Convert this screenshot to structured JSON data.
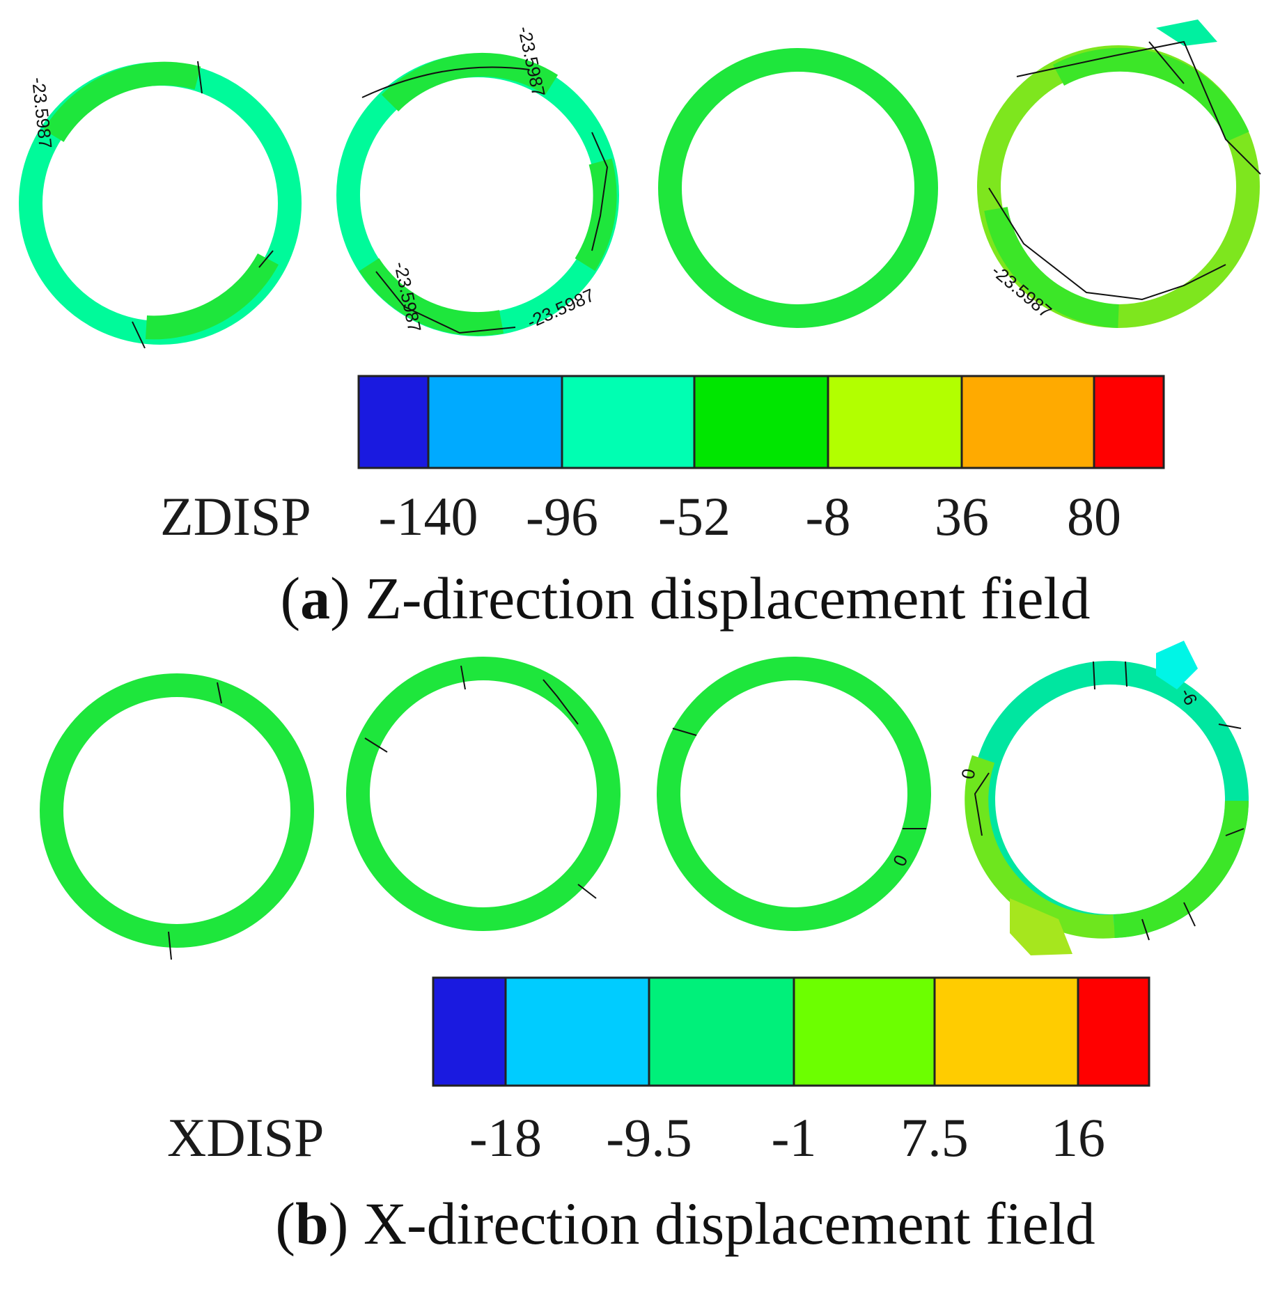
{
  "panel_a": {
    "letter": "a",
    "caption": "Z-direction displacement field",
    "legend": {
      "variable": "ZDISP",
      "ticks": [
        "-140",
        "-96",
        "-52",
        "-8",
        "36",
        "80"
      ],
      "colors": [
        "#1a1ae0",
        "#00aaff",
        "#00ffb2",
        "#00e600",
        "#b2ff00",
        "#ffaa00",
        "#ff0000"
      ]
    },
    "contour_labels": [
      "-23.5987",
      "-23.5987",
      "-23.5987",
      "-23.5987",
      "-23.5987",
      "-23.5987"
    ]
  },
  "panel_b": {
    "letter": "b",
    "caption": "X-direction displacement field",
    "legend": {
      "variable": "XDISP",
      "ticks": [
        "-18",
        "-9.5",
        "-1",
        "7.5",
        "16"
      ],
      "colors": [
        "#1a1ae0",
        "#00ccff",
        "#00f07a",
        "#6cff00",
        "#ffcc00",
        "#ff0000"
      ]
    },
    "contour_labels": [
      "0",
      "-6",
      "0"
    ]
  }
}
